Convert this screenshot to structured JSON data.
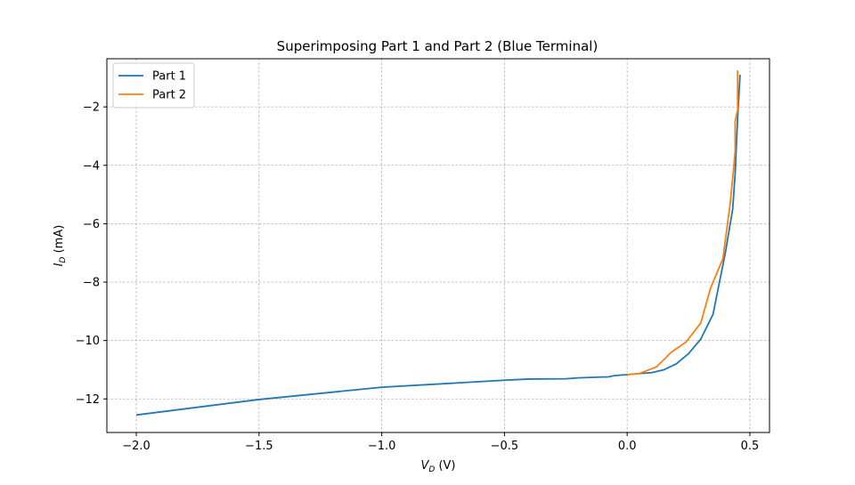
{
  "chart_data": {
    "type": "line",
    "title": "Superimposing Part 1 and Part 2 (Blue Terminal)",
    "xlabel": {
      "main": "V",
      "sub": "D",
      "unit": " (V)"
    },
    "ylabel": {
      "main": "I",
      "sub": "D",
      "unit": " (mA)"
    },
    "xlim": [
      -2.12,
      0.58
    ],
    "ylim": [
      -13.15,
      -0.35
    ],
    "xticks": [
      -2.0,
      -1.5,
      -1.0,
      -0.5,
      0.0,
      0.5
    ],
    "xtick_labels": [
      "−2.0",
      "−1.5",
      "−1.0",
      "−0.5",
      "0.0",
      "0.5"
    ],
    "yticks": [
      -12,
      -10,
      -8,
      -6,
      -4,
      -2
    ],
    "ytick_labels": [
      "−12",
      "−10",
      "−8",
      "−6",
      "−4",
      "−2"
    ],
    "grid": true,
    "legend_position": "top-left",
    "series": [
      {
        "name": "Part 1",
        "color": "#1f77b4",
        "x": [
          -2.0,
          -1.5,
          -1.0,
          -0.5,
          -0.4,
          -0.25,
          -0.2,
          -0.1,
          -0.08,
          -0.05,
          0.0,
          0.05,
          0.1,
          0.15,
          0.2,
          0.25,
          0.3,
          0.35,
          0.4,
          0.43,
          0.44,
          0.45,
          0.46
        ],
        "y": [
          -12.55,
          -12.02,
          -11.6,
          -11.36,
          -11.32,
          -11.31,
          -11.28,
          -11.25,
          -11.25,
          -11.2,
          -11.17,
          -11.13,
          -11.1,
          -11.0,
          -10.8,
          -10.45,
          -9.95,
          -9.1,
          -7.0,
          -5.5,
          -4.3,
          -2.4,
          -0.9
        ]
      },
      {
        "name": "Part 2",
        "color": "#ff7f0e",
        "x": [
          0.0,
          0.05,
          0.12,
          0.18,
          0.24,
          0.3,
          0.34,
          0.39,
          0.42,
          0.435,
          0.44,
          0.44,
          0.45,
          0.45
        ],
        "y": [
          -11.17,
          -11.13,
          -10.9,
          -10.4,
          -10.05,
          -9.4,
          -8.2,
          -7.2,
          -5.3,
          -4.0,
          -3.5,
          -2.5,
          -2.1,
          -0.75
        ]
      }
    ]
  }
}
